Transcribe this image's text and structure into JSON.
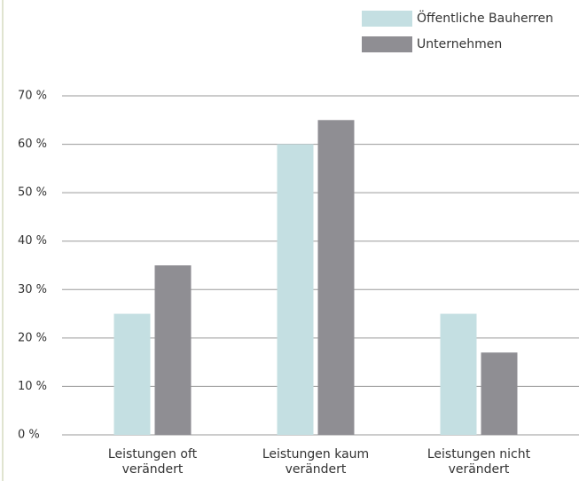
{
  "chart_data": {
    "type": "bar",
    "categories": [
      "Leistungen oft verändert",
      "Leistungen kaum verändert",
      "Leistungen nicht verändert"
    ],
    "series": [
      {
        "name": "Öffentliche Bauherren",
        "color": "#c4dfe2",
        "values": [
          25,
          60,
          25
        ]
      },
      {
        "name": "Unternehmen",
        "color": "#8f8e93",
        "values": [
          35,
          65,
          17
        ]
      }
    ],
    "ylim": [
      0,
      70
    ],
    "yticks": [
      {
        "value": 0,
        "label": "0 %"
      },
      {
        "value": 10,
        "label": "10 %"
      },
      {
        "value": 20,
        "label": "20 %"
      },
      {
        "value": 30,
        "label": "30 %"
      },
      {
        "value": 40,
        "label": "40 %"
      },
      {
        "value": 50,
        "label": "50 %"
      },
      {
        "value": 60,
        "label": "60 %"
      },
      {
        "value": 70,
        "label": "70 %"
      }
    ],
    "grid": true,
    "legend": "top-right"
  }
}
